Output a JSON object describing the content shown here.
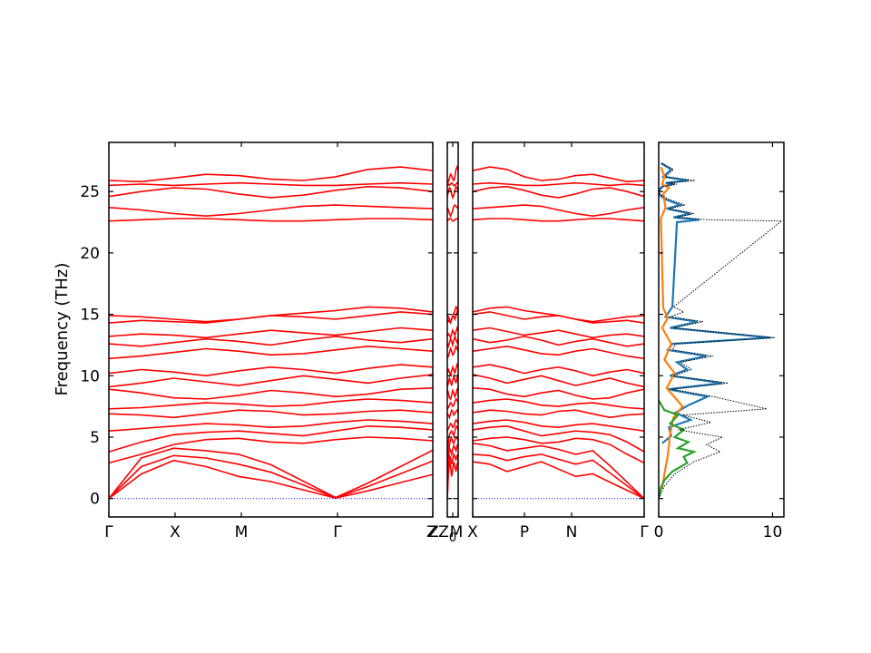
{
  "chart_data": [
    {
      "type": "line",
      "panel": "band-structure",
      "ylabel": "Frequency (THz)",
      "ylim": [
        -1.5,
        29
      ],
      "y_ticks": [
        "0",
        "5",
        "10",
        "15",
        "20",
        "25"
      ],
      "segments": [
        {
          "name": "Γ–X–M–Γ–Z",
          "x_ticks": [
            "Γ",
            "X",
            "M",
            "Γ",
            "Z"
          ]
        },
        {
          "name": "Z0–M",
          "x_ticks": [
            "Z",
            "Z",
            "M"
          ],
          "subscript": "0"
        },
        {
          "name": "X–P–N–Γ",
          "x_ticks": [
            "X",
            "P",
            "N",
            "Γ"
          ]
        }
      ],
      "band_color": "#ff0000",
      "zero_line_color": "#0000ff",
      "bands": {
        "x": [
          0.0,
          0.1,
          0.2,
          0.3,
          0.4,
          0.5,
          0.6,
          0.7,
          0.8,
          0.9,
          1.0
        ],
        "series": [
          {
            "values": [
              22.6,
              22.7,
              22.8,
              22.8,
              22.7,
              22.6,
              22.6,
              22.7,
              22.8,
              22.8,
              22.7
            ]
          },
          {
            "values": [
              23.7,
              23.5,
              23.2,
              23.0,
              23.2,
              23.5,
              23.8,
              23.9,
              23.8,
              23.7,
              23.6
            ]
          },
          {
            "values": [
              24.6,
              25.0,
              25.3,
              25.2,
              24.8,
              24.5,
              24.7,
              25.1,
              25.4,
              25.3,
              25.0
            ]
          },
          {
            "values": [
              25.5,
              25.6,
              25.5,
              25.6,
              25.7,
              25.6,
              25.5,
              25.5,
              25.6,
              25.7,
              25.6
            ]
          },
          {
            "values": [
              25.9,
              25.8,
              26.1,
              26.4,
              26.3,
              26.0,
              25.9,
              26.2,
              26.8,
              27.0,
              26.7
            ]
          },
          {
            "values": [
              0.0,
              2.0,
              3.1,
              2.6,
              1.8,
              2.4,
              3.0,
              2.6,
              2.2,
              2.8,
              3.0
            ]
          },
          {
            "values": [
              0.0,
              2.6,
              3.5,
              3.3,
              2.8,
              3.2,
              3.6,
              3.4,
              3.1,
              3.5,
              3.6
            ]
          },
          {
            "values": [
              0.0,
              3.3,
              4.1,
              3.9,
              3.6,
              4.0,
              4.3,
              4.1,
              3.9,
              4.3,
              4.5
            ]
          },
          {
            "values": [
              2.9,
              3.6,
              4.4,
              4.8,
              4.9,
              4.6,
              4.5,
              4.8,
              5.0,
              4.9,
              4.7
            ]
          },
          {
            "values": [
              3.8,
              4.6,
              5.2,
              5.4,
              5.5,
              5.3,
              5.1,
              5.5,
              5.9,
              5.8,
              5.6
            ]
          },
          {
            "values": [
              5.5,
              5.7,
              5.9,
              6.1,
              6.0,
              5.8,
              5.9,
              6.2,
              6.4,
              6.3,
              6.1
            ]
          },
          {
            "values": [
              6.9,
              6.8,
              6.6,
              6.9,
              7.2,
              7.1,
              6.8,
              6.9,
              7.1,
              7.2,
              7.0
            ]
          },
          {
            "values": [
              7.3,
              7.4,
              7.6,
              7.8,
              7.7,
              7.5,
              7.6,
              7.9,
              8.1,
              8.0,
              7.8
            ]
          },
          {
            "values": [
              8.9,
              8.6,
              8.2,
              8.1,
              8.4,
              8.8,
              8.6,
              8.3,
              8.5,
              8.9,
              9.0
            ]
          },
          {
            "values": [
              9.1,
              9.4,
              9.8,
              9.5,
              9.2,
              9.6,
              10.0,
              9.7,
              9.4,
              9.8,
              10.1
            ]
          },
          {
            "values": [
              10.2,
              10.5,
              10.3,
              10.0,
              10.4,
              10.7,
              10.5,
              10.2,
              10.6,
              10.9,
              10.7
            ]
          },
          {
            "values": [
              11.4,
              11.6,
              11.9,
              12.2,
              12.0,
              11.7,
              11.8,
              12.1,
              12.4,
              12.2,
              12.0
            ]
          },
          {
            "values": [
              12.6,
              12.4,
              12.7,
              13.0,
              12.8,
              12.5,
              12.9,
              13.2,
              12.9,
              12.7,
              13.0
            ]
          },
          {
            "values": [
              13.2,
              13.4,
              13.3,
              13.1,
              13.4,
              13.7,
              13.5,
              13.3,
              13.6,
              13.9,
              13.7
            ]
          },
          {
            "values": [
              14.3,
              14.5,
              14.4,
              14.3,
              14.6,
              14.9,
              15.1,
              15.3,
              15.6,
              15.5,
              15.2
            ]
          },
          {
            "values": [
              14.9,
              14.8,
              14.6,
              14.4,
              14.6,
              14.9,
              14.8,
              14.6,
              14.9,
              15.2,
              15.0
            ]
          }
        ]
      }
    },
    {
      "type": "line",
      "panel": "density-of-states",
      "xlim": [
        0,
        11
      ],
      "x_ticks": [
        "0",
        "10"
      ],
      "ylim": [
        -1.5,
        29
      ],
      "series": [
        {
          "color": "#1f77b4",
          "style": "solid",
          "x": [
            0.2,
            1.1,
            0.4,
            2.6,
            0.6,
            1.3,
            0.3,
            0.0,
            0.0,
            0.5,
            1.9,
            0.7,
            2.8,
            1.3,
            3.6,
            1.6,
            1.2,
            0.9,
            0.6,
            3.4,
            1.0,
            9.8,
            1.2,
            0.8,
            4.2,
            1.6,
            2.5,
            1.0,
            5.6,
            0.8,
            4.3,
            2.6,
            1.5,
            2.8,
            0.9,
            1.1,
            0.3
          ],
          "y": [
            27.3,
            26.8,
            26.2,
            25.9,
            25.7,
            25.6,
            25.4,
            25.1,
            24.8,
            24.4,
            23.9,
            23.6,
            23.2,
            22.9,
            22.7,
            22.5,
            15.6,
            15.2,
            14.8,
            14.4,
            13.9,
            13.1,
            12.6,
            12.1,
            11.6,
            11.1,
            10.5,
            10.0,
            9.4,
            8.9,
            8.3,
            7.6,
            7.0,
            6.4,
            5.8,
            5.1,
            4.5
          ]
        },
        {
          "color": "#ff7f0e",
          "style": "solid",
          "x": [
            0.2,
            0.5,
            0.3,
            0.9,
            0.4,
            0.6,
            0.2,
            0.4,
            0.8,
            0.3,
            1.1,
            0.5,
            1.4,
            0.7,
            2.1,
            1.3,
            1.0,
            0.8,
            0.5,
            0.3
          ],
          "y": [
            27.0,
            26.2,
            25.6,
            25.3,
            24.8,
            23.7,
            22.8,
            15.5,
            14.7,
            13.9,
            12.6,
            11.3,
            10.2,
            9.0,
            7.5,
            6.6,
            5.2,
            3.5,
            2.0,
            0.8
          ]
        },
        {
          "color": "#2ca02c",
          "style": "solid",
          "x": [
            0.0,
            0.5,
            1.7,
            1.0,
            2.2,
            1.4,
            2.6,
            1.7,
            3.1,
            2.2,
            2.5,
            1.2,
            0.5,
            0.2,
            0.0
          ],
          "y": [
            8.0,
            7.2,
            6.8,
            6.1,
            5.6,
            5.0,
            4.6,
            4.1,
            3.8,
            3.4,
            2.9,
            2.2,
            1.5,
            0.9,
            0.0
          ]
        },
        {
          "color": "#000000",
          "style": "dotted",
          "x": [
            0.3,
            1.3,
            0.6,
            3.2,
            0.8,
            1.6,
            0.4,
            0.1,
            0.1,
            0.8,
            2.3,
            0.9,
            3.1,
            1.6,
            4.4,
            10.8,
            1.3,
            2.2,
            1.0,
            3.9,
            1.3,
            10.2,
            1.5,
            1.2,
            4.8,
            1.9,
            2.9,
            1.3,
            6.1,
            1.2,
            4.8,
            9.5,
            2.1,
            4.6,
            1.7,
            5.6,
            4.2,
            5.4,
            3.1,
            1.4,
            0.5,
            0.0
          ],
          "y": [
            27.3,
            26.8,
            26.2,
            25.9,
            25.7,
            25.6,
            25.4,
            25.1,
            24.8,
            24.4,
            23.9,
            23.6,
            23.2,
            22.9,
            22.7,
            22.6,
            15.6,
            15.2,
            14.8,
            14.4,
            13.9,
            13.1,
            12.6,
            12.1,
            11.6,
            11.1,
            10.5,
            10.0,
            9.4,
            8.9,
            8.3,
            7.3,
            6.8,
            6.2,
            5.6,
            5.0,
            4.4,
            3.8,
            3.0,
            2.0,
            1.0,
            0.0
          ]
        }
      ]
    }
  ]
}
